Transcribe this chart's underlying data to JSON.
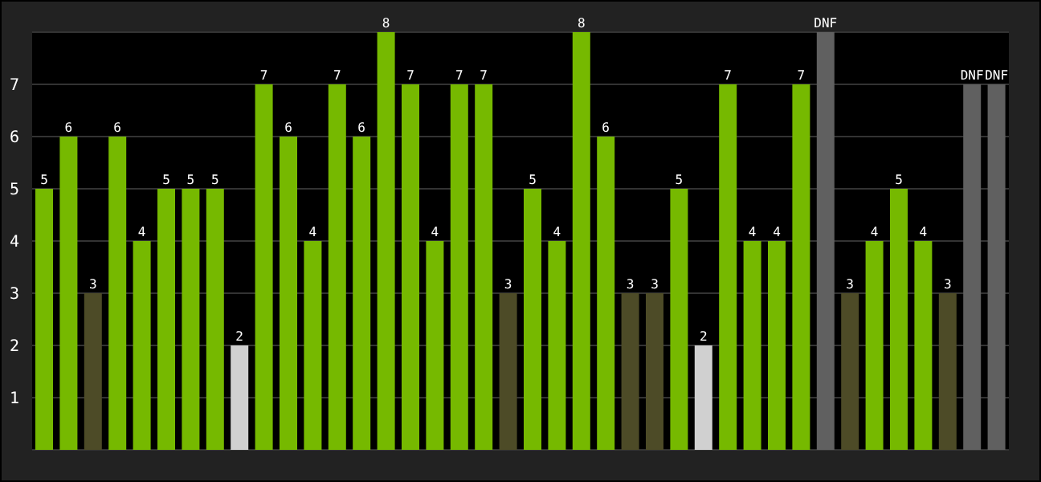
{
  "chart_data": {
    "type": "bar",
    "categories": [
      null,
      null,
      null,
      null,
      null,
      null,
      null,
      null,
      null,
      null,
      null,
      null,
      null,
      null,
      null,
      null,
      null,
      null,
      null,
      null,
      null,
      null,
      null,
      null,
      null,
      null,
      null,
      null,
      null,
      null,
      null,
      null,
      null,
      null,
      null,
      null,
      null,
      null,
      null,
      null
    ],
    "values": [
      5,
      6,
      3,
      6,
      4,
      5,
      5,
      5,
      2,
      7,
      6,
      4,
      7,
      6,
      8,
      7,
      4,
      7,
      7,
      3,
      5,
      4,
      8,
      6,
      3,
      3,
      5,
      2,
      7,
      4,
      4,
      7,
      8,
      3,
      4,
      5,
      4,
      3,
      7,
      7
    ],
    "value_labels": [
      "5",
      "6",
      "3",
      "6",
      "4",
      "5",
      "5",
      "5",
      "2",
      "7",
      "6",
      "4",
      "7",
      "6",
      "8",
      "7",
      "4",
      "7",
      "7",
      "3",
      "5",
      "4",
      "8",
      "6",
      "3",
      "3",
      "5",
      "2",
      "7",
      "4",
      "4",
      "7",
      "DNF",
      "3",
      "4",
      "5",
      "4",
      "3",
      "DNF",
      "DNF"
    ],
    "colors": [
      "#76b900",
      "#76b900",
      "#4d4b27",
      "#76b900",
      "#76b900",
      "#76b900",
      "#76b900",
      "#76b900",
      "#d0d0d0",
      "#76b900",
      "#76b900",
      "#76b900",
      "#76b900",
      "#76b900",
      "#76b900",
      "#76b900",
      "#76b900",
      "#76b900",
      "#76b900",
      "#4d4b27",
      "#76b900",
      "#76b900",
      "#76b900",
      "#76b900",
      "#4d4b27",
      "#4d4b27",
      "#76b900",
      "#d0d0d0",
      "#76b900",
      "#76b900",
      "#76b900",
      "#76b900",
      "#606060",
      "#4d4b27",
      "#76b900",
      "#76b900",
      "#76b900",
      "#4d4b27",
      "#606060",
      "#606060"
    ],
    "ylim": [
      0,
      8
    ],
    "yticks": [
      1,
      2,
      3,
      4,
      5,
      6,
      7
    ],
    "grid": "y",
    "legend": false,
    "tick_labels": "y"
  }
}
